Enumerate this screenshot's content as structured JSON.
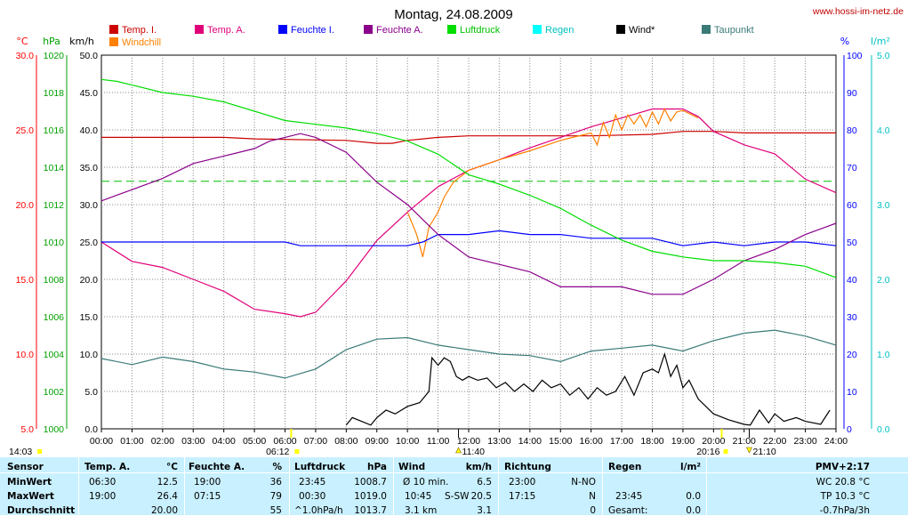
{
  "header": {
    "title": "Montag, 24.08.2009",
    "site": "www.hossi-im-netz.de"
  },
  "chart_data": {
    "type": "line",
    "title": "Montag, 24.08.2009",
    "x_ticks": [
      "00:00",
      "01:00",
      "02:00",
      "03:00",
      "04:00",
      "05:00",
      "06:00",
      "07:00",
      "08:00",
      "09:00",
      "10:00",
      "11:00",
      "12:00",
      "13:00",
      "14:00",
      "15:00",
      "16:00",
      "17:00",
      "18:00",
      "19:00",
      "20:00",
      "21:00",
      "22:00",
      "23:00",
      "24:00"
    ],
    "xlim": [
      0,
      24
    ],
    "grid": true,
    "axes": {
      "temp": {
        "unit": "°C",
        "color": "#ff0000",
        "range": [
          5,
          30
        ],
        "ticks": [
          "5.0",
          "10.0",
          "15.0",
          "20.0",
          "25.0",
          "30.0"
        ]
      },
      "pressure": {
        "unit": "hPa",
        "color": "#00a000",
        "range": [
          1000,
          1020
        ],
        "ticks": [
          "1000",
          "1002",
          "1004",
          "1006",
          "1008",
          "1010",
          "1012",
          "1014",
          "1016",
          "1018",
          "1020"
        ]
      },
      "wind": {
        "unit": "km/h",
        "color": "#000000",
        "range": [
          0,
          50
        ],
        "ticks": [
          "0.0",
          "5.0",
          "10.0",
          "15.0",
          "20.0",
          "25.0",
          "30.0",
          "35.0",
          "40.0",
          "45.0",
          "50.0"
        ]
      },
      "humidity": {
        "unit": "%",
        "color": "#0000ff",
        "range": [
          0,
          100
        ],
        "ticks": [
          "0",
          "10",
          "20",
          "30",
          "40",
          "50",
          "60",
          "70",
          "80",
          "90",
          "100"
        ]
      },
      "rain": {
        "unit": "l/m²",
        "color": "#00c0c0",
        "range": [
          0,
          5
        ],
        "ticks": [
          "0.0",
          "1.0",
          "2.0",
          "3.0",
          "4.0",
          "5.0"
        ]
      }
    },
    "legend": [
      {
        "name": "Temp. I.",
        "color": "#cc0000"
      },
      {
        "name": "Temp. A.",
        "color": "#e0007a"
      },
      {
        "name": "Feuchte I.",
        "color": "#0000ff"
      },
      {
        "name": "Feuchte A.",
        "color": "#8a008a"
      },
      {
        "name": "Luftdruck",
        "color": "#00dd00"
      },
      {
        "name": "Regen",
        "color": "#00ffff"
      },
      {
        "name": "Wind*",
        "color": "#000000"
      },
      {
        "name": "Taupunkt",
        "color": "#3a7a78"
      },
      {
        "name": "Windchill",
        "color": "#ff8000"
      }
    ],
    "series": [
      {
        "name": "Temp. I.",
        "axis": "temp",
        "color": "#cc0000",
        "x": [
          0,
          4,
          5,
          8,
          9,
          9.5,
          10,
          10.5,
          11,
          12,
          14,
          16,
          18,
          19,
          20,
          21,
          24
        ],
        "y": [
          24.5,
          24.5,
          24.4,
          24.3,
          24.1,
          24.1,
          24.3,
          24.4,
          24.5,
          24.6,
          24.6,
          24.6,
          24.7,
          24.9,
          24.9,
          24.8,
          24.8
        ]
      },
      {
        "name": "Temp. A.",
        "axis": "temp",
        "color": "#e0007a",
        "x": [
          0,
          1,
          2,
          3,
          4,
          5,
          6,
          6.5,
          7,
          8,
          9,
          10,
          11,
          12,
          13,
          14,
          15,
          16,
          17,
          18,
          19,
          19.5,
          20,
          21,
          22,
          23,
          24
        ],
        "y": [
          17.5,
          16.2,
          15.8,
          15.0,
          14.2,
          13.0,
          12.7,
          12.5,
          12.8,
          14.9,
          17.6,
          19.5,
          21.2,
          22.3,
          23.0,
          23.8,
          24.5,
          25.2,
          25.8,
          26.4,
          26.4,
          25.9,
          24.9,
          24.0,
          23.4,
          21.7,
          20.8
        ]
      },
      {
        "name": "Windchill",
        "axis": "temp",
        "color": "#ff8000",
        "x": [
          10.0,
          10.3,
          10.5,
          10.7,
          11.0,
          11.2,
          11.5,
          12,
          13,
          14,
          15,
          16,
          16.2,
          16.4,
          16.6,
          16.8,
          17,
          17.2,
          17.4,
          17.6,
          17.8,
          18,
          18.2,
          18.4,
          18.6,
          18.8,
          19,
          19.5
        ],
        "y": [
          19.5,
          18.0,
          16.5,
          18.5,
          19.5,
          20.5,
          21.5,
          22.3,
          23.0,
          23.6,
          24.3,
          24.8,
          24.0,
          25.5,
          24.5,
          26.0,
          25.0,
          26.0,
          25.4,
          26.0,
          25.2,
          26.2,
          25.4,
          26.4,
          25.6,
          26.2,
          26.3,
          25.8
        ]
      },
      {
        "name": "Feuchte I.",
        "axis": "humidity",
        "color": "#0000ff",
        "x": [
          0,
          6,
          6.5,
          10,
          10.5,
          11,
          12,
          13,
          14,
          15,
          16,
          18,
          19,
          20,
          21,
          22,
          23,
          24
        ],
        "y": [
          50,
          50,
          49,
          49,
          50,
          52,
          52,
          53,
          52,
          52,
          51,
          51,
          49,
          50,
          49,
          50,
          50,
          49
        ]
      },
      {
        "name": "Feuchte A.",
        "axis": "humidity",
        "color": "#8a008a",
        "x": [
          0,
          1,
          2,
          3,
          4,
          5,
          5.5,
          6,
          6.5,
          7,
          8,
          9,
          10,
          11,
          12,
          13,
          14,
          15,
          16,
          17,
          18,
          19,
          20,
          21,
          22,
          23,
          24
        ],
        "y": [
          61,
          64,
          67,
          71,
          73,
          75,
          77,
          78,
          79,
          78,
          74,
          66,
          60,
          52,
          46,
          44,
          42,
          38,
          38,
          38,
          36,
          36,
          40,
          45,
          48,
          52,
          55
        ]
      },
      {
        "name": "Luftdruck",
        "axis": "pressure",
        "color": "#00dd00",
        "x": [
          0,
          0.5,
          1,
          2,
          3,
          4,
          5,
          6,
          7,
          8,
          9,
          10,
          11,
          12,
          13,
          14,
          15,
          16,
          17,
          18,
          19,
          20,
          21,
          22,
          23,
          24
        ],
        "y": [
          1018.7,
          1018.6,
          1018.4,
          1018.0,
          1017.8,
          1017.5,
          1017.0,
          1016.5,
          1016.3,
          1016.1,
          1015.8,
          1015.4,
          1014.7,
          1013.6,
          1013.1,
          1012.5,
          1011.8,
          1010.9,
          1010.1,
          1009.5,
          1009.2,
          1009.0,
          1009.0,
          1008.9,
          1008.7,
          1008.1
        ]
      },
      {
        "name": "Taupunkt",
        "axis": "temp",
        "color": "#3a7a78",
        "x": [
          0,
          1,
          2,
          3,
          4,
          5,
          6,
          7,
          8,
          9,
          10,
          11,
          12,
          13,
          14,
          15,
          16,
          17,
          18,
          19,
          20,
          21,
          22,
          23,
          24
        ],
        "y": [
          9.7,
          9.3,
          9.8,
          9.5,
          9.0,
          8.8,
          8.4,
          9.0,
          10.3,
          11.0,
          11.1,
          10.6,
          10.3,
          10.0,
          9.9,
          9.5,
          10.2,
          10.4,
          10.6,
          10.2,
          10.9,
          11.4,
          11.6,
          11.2,
          10.6
        ]
      },
      {
        "name": "Wind*",
        "axis": "wind",
        "color": "#000000",
        "x": [
          8,
          8.2,
          8.5,
          8.8,
          9,
          9.3,
          9.6,
          10,
          10.4,
          10.7,
          10.8,
          11,
          11.2,
          11.4,
          11.6,
          11.8,
          12,
          12.3,
          12.6,
          12.9,
          13.2,
          13.5,
          13.8,
          14.1,
          14.4,
          14.7,
          15,
          15.3,
          15.6,
          15.9,
          16.2,
          16.5,
          16.8,
          17.1,
          17.4,
          17.7,
          18,
          18.2,
          18.4,
          18.6,
          18.8,
          19,
          19.2,
          19.5,
          20,
          20.5,
          21,
          21.2,
          21.5,
          21.8,
          22,
          22.3,
          22.7,
          23,
          23.5,
          23.8
        ],
        "y": [
          0.5,
          1.5,
          1.0,
          0.5,
          1.5,
          2.5,
          2.0,
          3.0,
          3.5,
          5.0,
          9.5,
          8.5,
          9.5,
          9.0,
          7.0,
          6.5,
          7.0,
          6.5,
          6.8,
          5.5,
          6.2,
          5.0,
          6.0,
          5.0,
          6.5,
          5.5,
          6.0,
          4.5,
          5.5,
          4.0,
          5.5,
          4.5,
          5.0,
          7.0,
          4.5,
          7.5,
          8.0,
          7.5,
          10.0,
          7.0,
          8.5,
          5.5,
          6.5,
          4.0,
          2.0,
          1.2,
          0.6,
          0.5,
          2.5,
          0.8,
          2.0,
          1.0,
          1.5,
          1.0,
          0.6,
          2.5
        ]
      }
    ],
    "dashed_reference": {
      "axis": "pressure",
      "value": 1013.25,
      "color": "#00c000"
    },
    "markers": {
      "sunrise": "06:12",
      "sunset": "20:16",
      "left_time": "14:03",
      "triangle1": "11:40",
      "triangle2": "21:10"
    }
  },
  "stats": {
    "headers": {
      "sensor": "Sensor",
      "temp": "Temp. A.",
      "temp_unit": "°C",
      "hum": "Feuchte A.",
      "hum_unit": "%",
      "press": "Luftdruck",
      "press_unit": "hPa",
      "wind": "Wind",
      "wind_unit": "km/h",
      "dir": "Richtung",
      "rain": "Regen",
      "rain_unit": "l/m²",
      "pmv": "PMV+2:17"
    },
    "rows": [
      {
        "label": "MinWert",
        "temp_time": "06:30",
        "temp_val": "12.5",
        "hum_time": "19:00",
        "hum_val": "36",
        "press_time": "23:45",
        "press_val": "1008.7",
        "wind_label": "Ø 10 min.",
        "wind_val": "6.5",
        "dir_time": "23:00",
        "dir_val": "N-NO",
        "rain_time": "",
        "rain_val": "",
        "extra": "WC 20.8 °C"
      },
      {
        "label": "MaxWert",
        "temp_time": "19:00",
        "temp_val": "26.4",
        "hum_time": "07:15",
        "hum_val": "79",
        "press_time": "00:30",
        "press_val": "1019.0",
        "wind_label": "10:45",
        "wind_dir": "S-SW",
        "wind_val": "20.5",
        "dir_time": "17:15",
        "dir_val": "N",
        "rain_time": "23:45",
        "rain_val": "0.0",
        "extra": "TP 10.3 °C"
      },
      {
        "label": "Durchschnitt",
        "temp_time": "",
        "temp_val": "20.00",
        "hum_time": "",
        "hum_val": "55",
        "press_time": "^1.0hPa/h",
        "press_val": "1013.7",
        "wind_label": "3.1 km",
        "wind_val": "3.1",
        "dir_time": "",
        "dir_val": "0",
        "rain_time": "Gesamt:",
        "rain_val": "0.0",
        "extra": "-0.7hPa/3h"
      }
    ]
  }
}
